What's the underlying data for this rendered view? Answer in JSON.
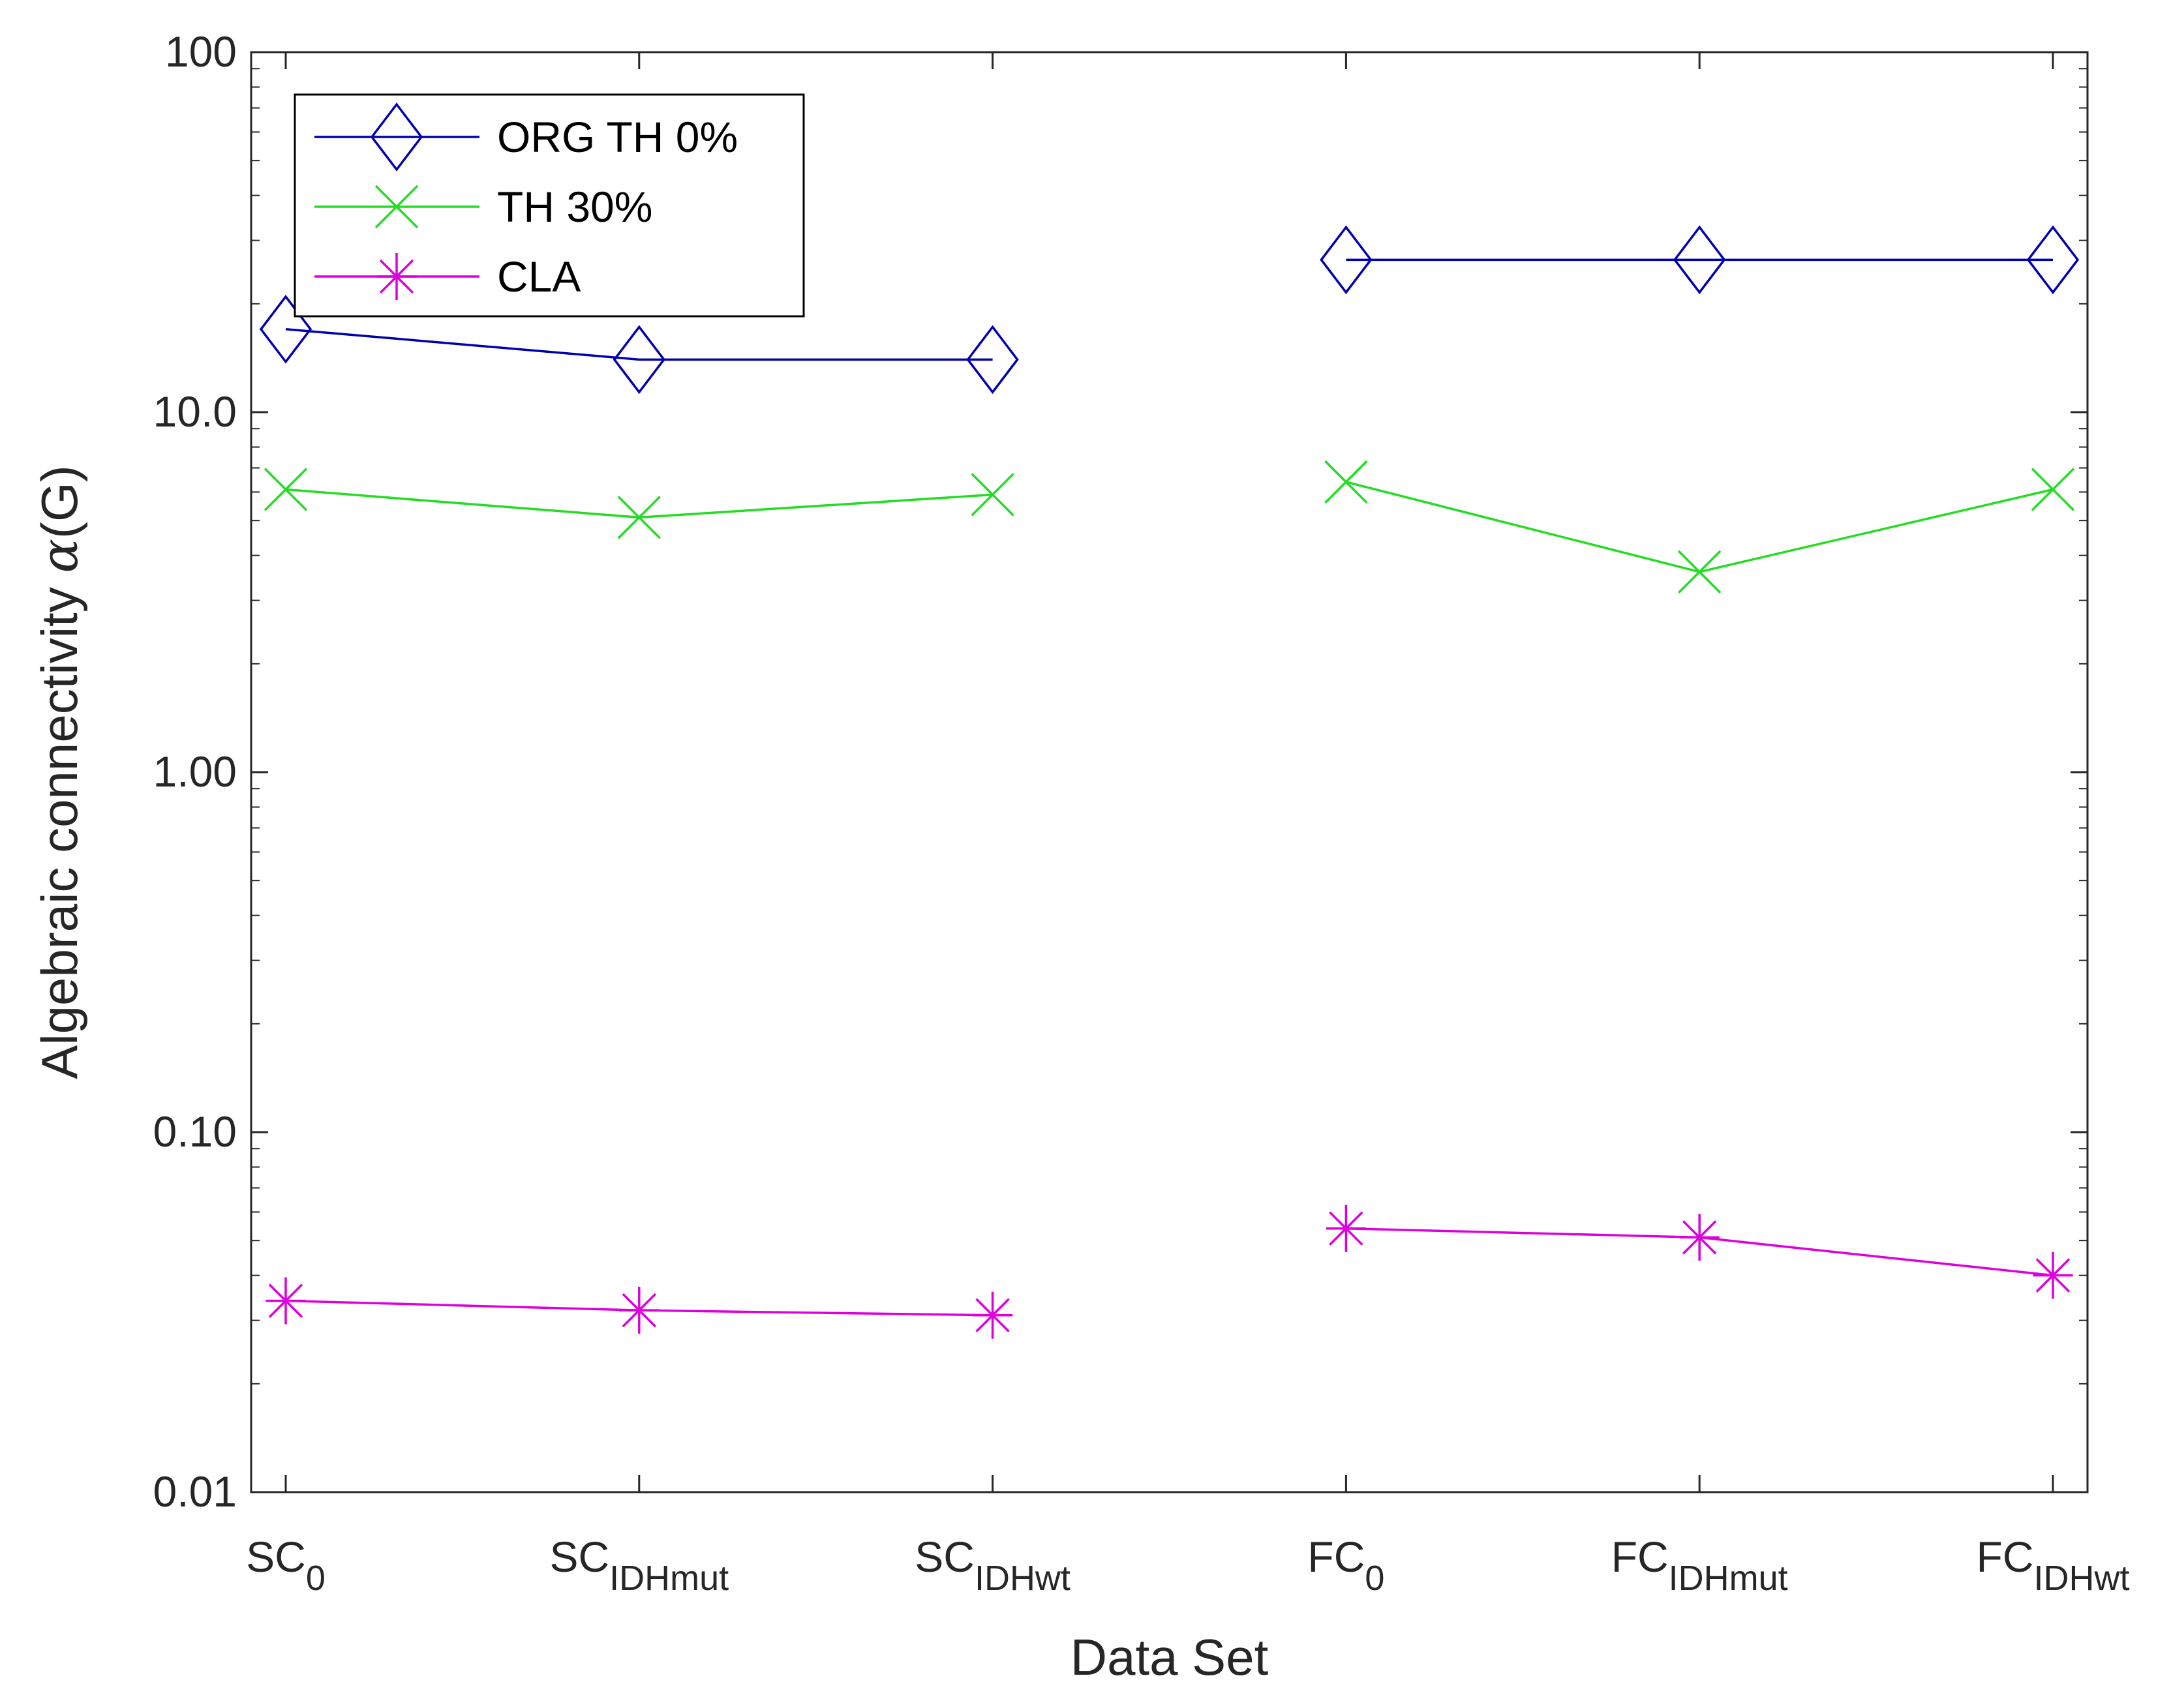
{
  "chart_data": {
    "type": "line",
    "title": "",
    "xlabel": "Data Set",
    "ylabel": "Algebraic connectivity",
    "ylabel_symbol": "α",
    "ylabel_suffix": "(G)",
    "yscale": "log",
    "ylim": [
      0.01,
      100
    ],
    "yticks": [
      0.01,
      0.1,
      1,
      10,
      100
    ],
    "ytick_labels": [
      "0.01",
      "0.10",
      "1.00",
      "10.0",
      "100"
    ],
    "categories": [
      {
        "base": "SC",
        "sub": "0"
      },
      {
        "base": "SC",
        "sub": "IDHmut"
      },
      {
        "base": "SC",
        "sub": "IDHwt"
      },
      {
        "base": "FC",
        "sub": "0"
      },
      {
        "base": "FC",
        "sub": "IDHmut"
      },
      {
        "base": "FC",
        "sub": "IDHwt"
      }
    ],
    "legend_location": "top-left",
    "series": [
      {
        "name": "ORG TH 0%",
        "color": "#0000b0",
        "marker": "diamond",
        "segments": [
          [
            0,
            1,
            2
          ],
          [
            3,
            4,
            5
          ]
        ],
        "values": [
          17.0,
          14.0,
          14.0,
          26.5,
          26.5,
          26.5
        ]
      },
      {
        "name": "TH 30%",
        "color": "#22dd22",
        "marker": "x",
        "segments": [
          [
            0,
            1,
            2
          ],
          [
            3,
            4,
            5
          ]
        ],
        "values": [
          6.1,
          5.1,
          5.9,
          6.4,
          3.6,
          6.1
        ]
      },
      {
        "name": "CLA",
        "color": "#dd00dd",
        "marker": "asterisk",
        "segments": [
          [
            0,
            1,
            2
          ],
          [
            3,
            4,
            5
          ]
        ],
        "values": [
          0.034,
          0.032,
          0.031,
          0.054,
          0.051,
          0.04
        ]
      }
    ]
  }
}
